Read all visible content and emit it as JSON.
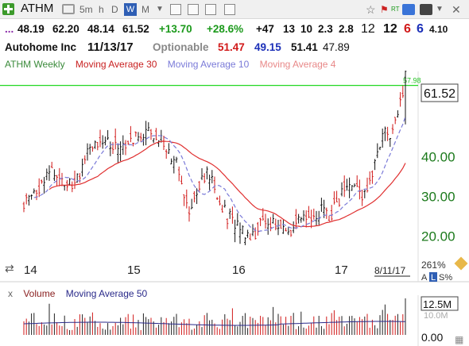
{
  "toolbar": {
    "symbol": "ATHM",
    "intervals": [
      "5m",
      "h",
      "D",
      "W",
      "M"
    ],
    "active_interval": "W"
  },
  "quote": {
    "prefix": "...",
    "open": "48.19",
    "high": "62.20",
    "low": "48.14",
    "close": "61.52",
    "change": "+13.70",
    "change_pct": "+28.6%",
    "f1": "+47",
    "f2": "13",
    "f3": "10",
    "f4": "2.3",
    "f5": "2.8",
    "r1": "12",
    "r2": "12",
    "r3": "6",
    "r4": "6",
    "r5": "4.10"
  },
  "info": {
    "name": "Autohome Inc",
    "date": "11/13/17",
    "optionable": "Optionable",
    "ma30": "51.47",
    "ma10": "49.15",
    "ma4": "51.41",
    "extra": "47.89"
  },
  "legend": {
    "symbol": "ATHM Weekly",
    "ma30": "Moving Average 30",
    "ma10": "Moving Average 10",
    "ma4": "Moving Average 4"
  },
  "volume_legend": {
    "close_x": "x",
    "volume": "Volume",
    "ma50": "Moving Average 50"
  },
  "colors": {
    "green": "#1c9a1c",
    "red": "#d11919",
    "blue": "#1b2fb8",
    "ma30": "#e03030",
    "ma10": "#7a7ad8",
    "ma4": "#e88888"
  },
  "chart_data": {
    "type": "candlestick",
    "x_ticks": [
      "14",
      "15",
      "16",
      "17"
    ],
    "x_end_label": "8/11/17",
    "y_ticks": [
      "20.00",
      "30.00",
      "40.00"
    ],
    "last_price": "61.52",
    "horizontal_line_label": "57.98",
    "horizontal_line_value": 57.98,
    "pct_change_label": "261%",
    "scale_buttons": [
      "A",
      "L",
      "S%"
    ],
    "volume_ticks": [
      "12.5M",
      "10.0M",
      "0.00"
    ],
    "price_waypoints": [
      [
        0,
        28
      ],
      [
        10,
        36
      ],
      [
        20,
        34
      ],
      [
        30,
        45
      ],
      [
        38,
        42
      ],
      [
        48,
        47
      ],
      [
        55,
        44
      ],
      [
        60,
        37
      ],
      [
        65,
        28
      ],
      [
        72,
        36
      ],
      [
        80,
        25
      ],
      [
        88,
        20
      ],
      [
        95,
        24
      ],
      [
        103,
        21
      ],
      [
        112,
        25
      ],
      [
        120,
        26
      ],
      [
        128,
        33
      ],
      [
        134,
        30
      ],
      [
        140,
        44
      ],
      [
        146,
        48
      ],
      [
        150,
        58
      ]
    ]
  }
}
